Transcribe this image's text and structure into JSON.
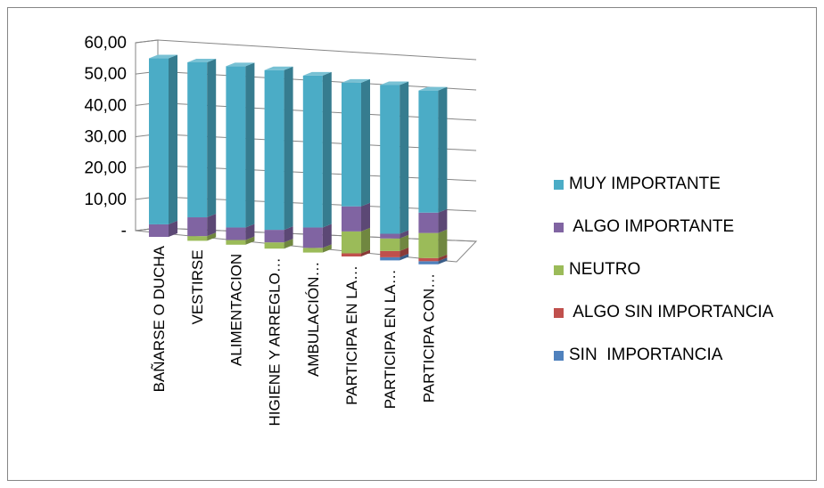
{
  "chart_data": {
    "type": "bar",
    "stacked": true,
    "three_d": true,
    "categories": [
      "BAÑARSE O DUCHA",
      "VESTIRSE",
      "ALIMENTACION",
      "HIGIENE Y ARREGLO…",
      "AMBULACIÓN…",
      "PARTICIPA EN LA…",
      "PARTICIPA EN LA…",
      "PARTICIPA CON…"
    ],
    "yticks": [
      "-",
      "10,00",
      "20,00",
      "30,00",
      "40,00",
      "50,00",
      "60,00"
    ],
    "ylim": [
      0,
      60
    ],
    "grid": true,
    "legend_position": "right",
    "series": [
      {
        "name": "SIN  IMPORTANCIA",
        "color": "#4F81BD",
        "values": [
          0,
          0,
          0,
          0,
          0,
          0,
          1.0,
          1.0
        ]
      },
      {
        "name": " ALGO SIN IMPORTANCIA",
        "color": "#C0504D",
        "values": [
          0,
          0,
          0,
          0,
          0,
          1.0,
          2.0,
          1.0
        ]
      },
      {
        "name": "NEUTRO",
        "color": "#9BBB59",
        "values": [
          0,
          1.5,
          1.5,
          2.0,
          1.5,
          7.0,
          4.0,
          8.0
        ]
      },
      {
        "name": " ALGO IMPORTANTE",
        "color": "#8064A2",
        "values": [
          4.0,
          6.0,
          4.0,
          4.0,
          6.5,
          8.0,
          1.5,
          6.5
        ]
      },
      {
        "name": "MUY IMPORTANTE",
        "color": "#4BACC6",
        "values": [
          53.0,
          49.5,
          51.5,
          51.0,
          48.5,
          39.5,
          47.5,
          39.0
        ]
      }
    ],
    "legend_order": [
      "MUY IMPORTANTE",
      " ALGO IMPORTANTE",
      "NEUTRO",
      " ALGO SIN IMPORTANCIA",
      "SIN  IMPORTANCIA"
    ]
  }
}
